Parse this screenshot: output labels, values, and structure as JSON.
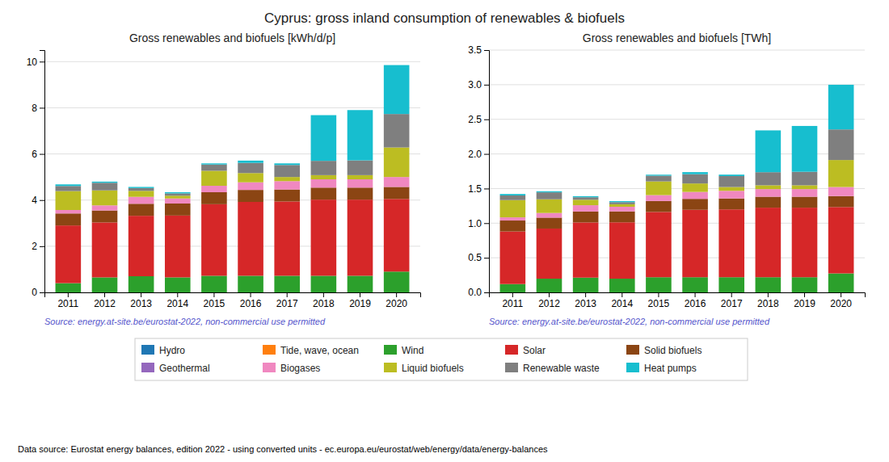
{
  "title": "Cyprus: gross inland consumption of renewables & biofuels",
  "annotations": [
    "Data source: Eurostat energy balances, edition 2022 - using converted units - ec.europa.eu/eurostat/web/energy/data/energy-balances"
  ],
  "chart_data": [
    {
      "type": "bar",
      "stacked": true,
      "grid": true,
      "legend": "bottom",
      "title": "Gross renewables and biofuels [kWh/d/p]",
      "annotations": [
        "Source: energy.at-site.be/eurostat-2022, non-commercial use permitted"
      ],
      "categories": [
        "2011",
        "2012",
        "2013",
        "2014",
        "2015",
        "2016",
        "2017",
        "2018",
        "2019",
        "2020"
      ],
      "ylim": [
        0,
        10.5
      ],
      "yticks": [
        0,
        2,
        4,
        6,
        8,
        10
      ],
      "series": [
        {
          "name": "Hydro",
          "color": "#1f77b4",
          "values": [
            0.0,
            0.0,
            0.0,
            0.0,
            0.0,
            0.0,
            0.0,
            0.0,
            0.0,
            0.0
          ]
        },
        {
          "name": "Tide, wave, ocean",
          "color": "#ff7f0e",
          "values": [
            0.0,
            0.0,
            0.0,
            0.0,
            0.0,
            0.0,
            0.0,
            0.0,
            0.0,
            0.0
          ]
        },
        {
          "name": "Wind",
          "color": "#2ca02c",
          "values": [
            0.4,
            0.65,
            0.7,
            0.65,
            0.72,
            0.72,
            0.72,
            0.72,
            0.72,
            0.9
          ]
        },
        {
          "name": "Solar",
          "color": "#d62728",
          "values": [
            2.5,
            2.38,
            2.62,
            2.68,
            3.1,
            3.2,
            3.22,
            3.3,
            3.3,
            3.15
          ]
        },
        {
          "name": "Solid biofuels",
          "color": "#8b4513",
          "values": [
            0.52,
            0.52,
            0.52,
            0.52,
            0.52,
            0.52,
            0.52,
            0.52,
            0.52,
            0.52
          ]
        },
        {
          "name": "Geothermal",
          "color": "#9467bd",
          "values": [
            0.0,
            0.0,
            0.0,
            0.0,
            0.0,
            0.0,
            0.0,
            0.0,
            0.0,
            0.0
          ]
        },
        {
          "name": "Biogases",
          "color": "#f088c0",
          "values": [
            0.15,
            0.22,
            0.3,
            0.22,
            0.28,
            0.33,
            0.36,
            0.36,
            0.36,
            0.43
          ]
        },
        {
          "name": "Liquid biofuels",
          "color": "#bcbd22",
          "values": [
            0.82,
            0.65,
            0.26,
            0.12,
            0.65,
            0.4,
            0.18,
            0.18,
            0.18,
            1.28
          ]
        },
        {
          "name": "Renewable waste",
          "color": "#7f7f7f",
          "values": [
            0.22,
            0.33,
            0.12,
            0.1,
            0.27,
            0.44,
            0.52,
            0.62,
            0.64,
            1.45
          ]
        },
        {
          "name": "Heat pumps",
          "color": "#17becf",
          "values": [
            0.07,
            0.05,
            0.05,
            0.05,
            0.05,
            0.1,
            0.07,
            1.98,
            2.18,
            2.12
          ]
        }
      ]
    },
    {
      "type": "bar",
      "stacked": true,
      "grid": true,
      "title": "Gross renewables and biofuels [TWh]",
      "annotations": [
        "Source: energy.at-site.be/eurostat-2022, non-commercial use permitted"
      ],
      "categories": [
        "2011",
        "2012",
        "2013",
        "2014",
        "2015",
        "2016",
        "2017",
        "2018",
        "2019",
        "2020"
      ],
      "ylim": [
        0,
        3.5
      ],
      "yticks": [
        {
          "value": 0,
          "label": "0.0"
        },
        0.5,
        {
          "value": 1,
          "label": "1.0"
        },
        1.5,
        {
          "value": 2,
          "label": "2.0"
        },
        2.5,
        {
          "value": 3,
          "label": "3.0"
        },
        3.5
      ],
      "series": [
        {
          "name": "Hydro",
          "color": "#1f77b4",
          "values": [
            0.0,
            0.0,
            0.0,
            0.0,
            0.0,
            0.0,
            0.0,
            0.0,
            0.0,
            0.0
          ]
        },
        {
          "name": "Tide, wave, ocean",
          "color": "#ff7f0e",
          "values": [
            0.0,
            0.0,
            0.0,
            0.0,
            0.0,
            0.0,
            0.0,
            0.0,
            0.0,
            0.0
          ]
        },
        {
          "name": "Wind",
          "color": "#2ca02c",
          "values": [
            0.12,
            0.198,
            0.213,
            0.198,
            0.219,
            0.219,
            0.219,
            0.219,
            0.219,
            0.274
          ]
        },
        {
          "name": "Solar",
          "color": "#d62728",
          "values": [
            0.76,
            0.724,
            0.797,
            0.814,
            0.943,
            0.974,
            0.98,
            1.005,
            1.005,
            0.959
          ]
        },
        {
          "name": "Solid biofuels",
          "color": "#8b4513",
          "values": [
            0.158,
            0.158,
            0.158,
            0.158,
            0.158,
            0.158,
            0.158,
            0.158,
            0.158,
            0.158
          ]
        },
        {
          "name": "Geothermal",
          "color": "#9467bd",
          "values": [
            0.0,
            0.0,
            0.0,
            0.0,
            0.0,
            0.0,
            0.0,
            0.0,
            0.0,
            0.0
          ]
        },
        {
          "name": "Biogases",
          "color": "#f088c0",
          "values": [
            0.046,
            0.067,
            0.091,
            0.067,
            0.085,
            0.1,
            0.11,
            0.11,
            0.11,
            0.131
          ]
        },
        {
          "name": "Liquid biofuels",
          "color": "#bcbd22",
          "values": [
            0.249,
            0.198,
            0.079,
            0.036,
            0.198,
            0.122,
            0.055,
            0.055,
            0.055,
            0.39
          ]
        },
        {
          "name": "Renewable waste",
          "color": "#7f7f7f",
          "values": [
            0.067,
            0.1,
            0.036,
            0.03,
            0.082,
            0.134,
            0.158,
            0.189,
            0.195,
            0.442
          ]
        },
        {
          "name": "Heat pumps",
          "color": "#17becf",
          "values": [
            0.021,
            0.015,
            0.015,
            0.015,
            0.015,
            0.03,
            0.021,
            0.604,
            0.662,
            0.645
          ]
        }
      ]
    }
  ]
}
